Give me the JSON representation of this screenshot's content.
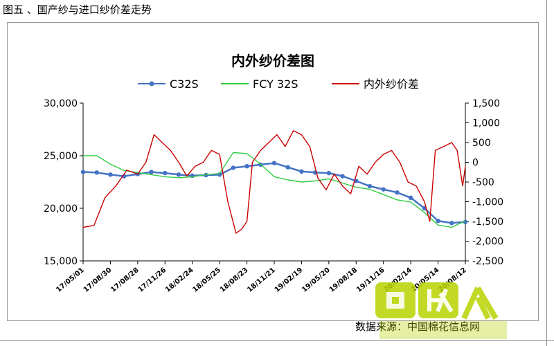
{
  "page": {
    "caption": "图五 、国产纱与进口纱价差走势",
    "source": "数据来源：中国棉花信息网",
    "watermark_text": "回收 人 HUISHOUKEN"
  },
  "chart_data": {
    "type": "line",
    "title": "内外纱价差图",
    "legend_position": "top",
    "grid": false,
    "y_left": {
      "ticks": [
        "30,000",
        "25,000",
        "20,000",
        "15,000"
      ],
      "ylim": [
        15000,
        30000
      ]
    },
    "y_right": {
      "ticks": [
        "1,500",
        "1,000",
        "500",
        "0",
        "-500",
        "-1,000",
        "-1,500",
        "-2,000",
        "-2,500"
      ],
      "ylim": [
        -2500,
        1500
      ]
    },
    "x": {
      "tick_labels": [
        "17/05/01",
        "17/08/30",
        "17/08/28",
        "17/11/26",
        "18/02/24",
        "18/05/25",
        "18/08/23",
        "18/11/21",
        "19/02/19",
        "19/05/20",
        "19/08/18",
        "19/11/16",
        "20/02/14",
        "20/05/14",
        "20/08/12"
      ],
      "xlim": [
        0,
        14
      ]
    },
    "series": [
      {
        "name": "C32S",
        "color": "#4472c4",
        "axis": "left",
        "x": [
          0,
          0.5,
          1,
          1.5,
          2,
          2.5,
          3,
          3.5,
          4,
          4.5,
          5,
          5.5,
          6,
          6.5,
          7,
          7.5,
          8,
          8.5,
          9,
          9.5,
          10,
          10.5,
          11,
          11.5,
          12,
          12.5,
          13,
          13.5,
          14
        ],
        "values": [
          23450,
          23400,
          23200,
          23050,
          23250,
          23450,
          23350,
          23200,
          23100,
          23150,
          23200,
          23850,
          24000,
          24150,
          24300,
          23900,
          23500,
          23400,
          23350,
          23050,
          22600,
          22100,
          21800,
          21500,
          21000,
          20000,
          18800,
          18600,
          18700
        ]
      },
      {
        "name": "FCY 32S",
        "color": "#2ecc40",
        "axis": "left",
        "x": [
          0,
          0.5,
          1,
          1.5,
          2,
          2.5,
          3,
          3.5,
          4,
          4.5,
          5,
          5.5,
          6,
          6.5,
          7,
          7.5,
          8,
          8.5,
          9,
          9.5,
          10,
          10.5,
          11,
          11.5,
          12,
          12.5,
          13,
          13.5,
          14
        ],
        "values": [
          25000,
          25000,
          24200,
          23600,
          23400,
          23200,
          23000,
          22900,
          23000,
          23200,
          23300,
          25300,
          25200,
          24200,
          23000,
          22700,
          22500,
          22600,
          22800,
          22400,
          22000,
          21800,
          21300,
          20800,
          20600,
          19600,
          18400,
          18200,
          18800
        ]
      },
      {
        "name": "内外纱价差",
        "color": "#cc0000",
        "axis": "right",
        "x": [
          0,
          0.4,
          0.8,
          1.2,
          1.6,
          2,
          2.3,
          2.6,
          2.9,
          3.2,
          3.5,
          3.8,
          4.1,
          4.4,
          4.7,
          5,
          5.3,
          5.6,
          5.8,
          6,
          6.2,
          6.5,
          6.8,
          7.1,
          7.4,
          7.7,
          8,
          8.3,
          8.6,
          8.9,
          9.2,
          9.5,
          9.8,
          10.1,
          10.4,
          10.7,
          11,
          11.3,
          11.6,
          11.9,
          12.2,
          12.5,
          12.7,
          12.9,
          13.2,
          13.5,
          13.7,
          13.9,
          14
        ],
        "values": [
          -1650,
          -1600,
          -900,
          -600,
          -200,
          -300,
          0,
          700,
          500,
          300,
          0,
          -350,
          -100,
          0,
          300,
          200,
          -1000,
          -1800,
          -1700,
          -1500,
          0,
          300,
          500,
          700,
          400,
          800,
          700,
          400,
          -400,
          -700,
          -300,
          -600,
          -800,
          -100,
          -300,
          0,
          200,
          300,
          0,
          -500,
          -600,
          -1000,
          -1500,
          300,
          400,
          500,
          300,
          -600,
          -100
        ]
      }
    ]
  }
}
